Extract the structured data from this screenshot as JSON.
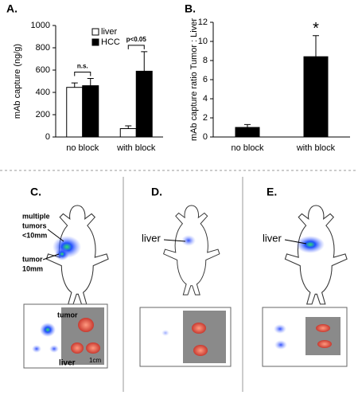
{
  "chart_data": [
    {
      "type": "bar",
      "panel": "A.",
      "ylabel": "mAb capture (ng/g)",
      "categories": [
        "no block",
        "with block"
      ],
      "series": [
        {
          "name": "liver",
          "color": "#ffffff",
          "values": [
            445,
            75
          ],
          "errors": [
            40,
            25
          ]
        },
        {
          "name": "HCC",
          "color": "#000000",
          "values": [
            460,
            590
          ],
          "errors": [
            65,
            175
          ]
        }
      ],
      "annotations": [
        "n.s.",
        "p<0.05"
      ],
      "ylim": [
        0,
        1000
      ],
      "yticks": [
        0,
        200,
        400,
        600,
        800,
        1000
      ],
      "legend": "top-left"
    },
    {
      "type": "bar",
      "panel": "B.",
      "ylabel": "mAb capture ratio Tumor : Liver",
      "categories": [
        "no block",
        "with block"
      ],
      "series": [
        {
          "color": "#000000",
          "values": [
            1.0,
            8.4
          ],
          "errors": [
            0.3,
            2.2
          ]
        }
      ],
      "annotations": [
        null,
        "*"
      ],
      "ylim": [
        0,
        12
      ],
      "yticks": [
        0,
        2,
        4,
        6,
        8,
        10,
        12
      ]
    }
  ],
  "images": {
    "c": {
      "label": "C.",
      "callout_lines": [
        "multiple",
        "tumors",
        "<10mm"
      ],
      "tumor": [
        "tumor",
        "10mm"
      ],
      "inset_tumor": "tumor",
      "inset_liver": "liver",
      "scale": "1cm"
    },
    "d": {
      "label": "D.",
      "liver": "liver"
    },
    "e": {
      "label": "E.",
      "liver": "liver"
    }
  }
}
